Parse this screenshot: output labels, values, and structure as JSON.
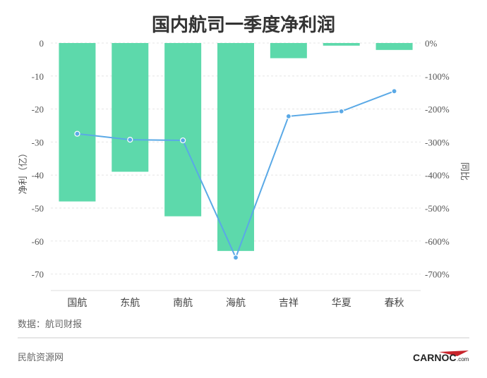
{
  "chart_data": {
    "type": "bar",
    "title": "国内航司一季度净利润",
    "categories": [
      "国航",
      "东航",
      "南航",
      "海航",
      "吉祥",
      "华夏",
      "春秋"
    ],
    "series": [
      {
        "type": "bar",
        "values": [
          -48,
          -39,
          -52.5,
          -63,
          -4.6,
          -0.8,
          -2.1
        ],
        "axis": "left",
        "color": "#5dd9ab"
      },
      {
        "type": "line",
        "values": [
          -275,
          -293,
          -295,
          -650,
          -222,
          -207,
          -146
        ],
        "axis": "right",
        "color": "#5aa9e6"
      }
    ],
    "ylabel": "净利（亿）",
    "y2label": "同比",
    "ylim": [
      -75,
      0
    ],
    "y2lim": [
      -750,
      0
    ],
    "yticks": [
      "0",
      "-10",
      "-20",
      "-30",
      "-40",
      "-50",
      "-60",
      "-70"
    ],
    "y2ticks": [
      "0%",
      "-100%",
      "-200%",
      "-300%",
      "-400%",
      "-500%",
      "-600%",
      "-700%"
    ],
    "grid": true,
    "source": "数据：航司财报"
  },
  "footer": {
    "site": "民航资源网",
    "logo_text": "CARNOC",
    "logo_suffix": ".com"
  }
}
